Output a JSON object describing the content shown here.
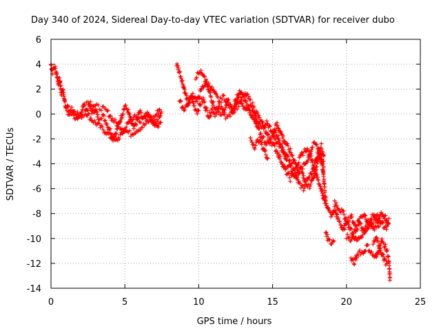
{
  "chart_data": {
    "type": "scatter",
    "title": "Day 340 of 2024, Sidereal Day-to-day VTEC variation (SDTVAR) for receiver dubo",
    "xlabel": "GPS time / hours",
    "ylabel": "SDTVAR / TECUs",
    "xlim": [
      0,
      25
    ],
    "ylim": [
      -14,
      6
    ],
    "xticks": [
      0,
      5,
      10,
      15,
      20,
      25
    ],
    "yticks": [
      -14,
      -12,
      -10,
      -8,
      -6,
      -4,
      -2,
      0,
      2,
      4,
      6
    ],
    "grid": true,
    "marker": "+",
    "series": [
      {
        "name": "SDTVAR",
        "color": "#ff0000",
        "tracks": [
          [
            [
              0.0,
              4.0
            ],
            [
              0.1,
              3.4
            ],
            [
              0.25,
              3.8
            ],
            [
              0.4,
              3.2
            ],
            [
              0.5,
              2.4
            ],
            [
              0.6,
              2.8
            ],
            [
              0.7,
              1.6
            ],
            [
              0.8,
              2.0
            ],
            [
              0.9,
              1.2
            ],
            [
              1.0,
              0.6
            ],
            [
              1.1,
              0.8
            ],
            [
              1.2,
              0.2
            ],
            [
              1.4,
              0.4
            ],
            [
              1.6,
              -0.2
            ],
            [
              1.8,
              -0.6
            ],
            [
              2.0,
              0.0
            ],
            [
              2.2,
              0.7
            ],
            [
              2.4,
              0.3
            ],
            [
              2.6,
              0.6
            ],
            [
              2.8,
              0.1
            ],
            [
              3.0,
              0.4
            ],
            [
              3.2,
              -0.3
            ],
            [
              3.5,
              -0.1
            ],
            [
              3.8,
              -0.8
            ],
            [
              4.0,
              -1.3
            ],
            [
              4.2,
              -1.8
            ],
            [
              4.4,
              -1.5
            ],
            [
              4.6,
              -0.8
            ],
            [
              4.8,
              -0.1
            ],
            [
              5.0,
              0.6
            ],
            [
              5.2,
              0.3
            ],
            [
              5.4,
              -0.5
            ],
            [
              5.6,
              -1.2
            ],
            [
              5.8,
              -0.6
            ],
            [
              6.0,
              0.2
            ],
            [
              6.3,
              -0.4
            ],
            [
              6.6,
              0.0
            ],
            [
              7.0,
              -0.8
            ],
            [
              7.3,
              -0.4
            ],
            [
              7.5,
              0.3
            ]
          ],
          [
            [
              1.0,
              0.3
            ],
            [
              1.3,
              0.0
            ],
            [
              1.6,
              0.3
            ],
            [
              2.0,
              -0.2
            ],
            [
              2.4,
              0.1
            ],
            [
              2.8,
              -0.5
            ],
            [
              3.2,
              -0.9
            ],
            [
              3.6,
              -1.3
            ],
            [
              4.0,
              -1.8
            ],
            [
              4.4,
              -2.2
            ],
            [
              4.8,
              -1.6
            ],
            [
              5.2,
              -0.8
            ],
            [
              5.6,
              -0.2
            ],
            [
              6.0,
              -0.6
            ],
            [
              6.4,
              0.1
            ],
            [
              6.8,
              -0.4
            ],
            [
              7.2,
              -1.0
            ],
            [
              7.5,
              -0.6
            ]
          ],
          [
            [
              2.2,
              0.9
            ],
            [
              2.6,
              1.0
            ],
            [
              3.0,
              0.6
            ],
            [
              3.4,
              0.5
            ],
            [
              3.8,
              0.2
            ],
            [
              4.2,
              -0.5
            ],
            [
              4.6,
              -0.9
            ],
            [
              5.0,
              -1.3
            ],
            [
              5.4,
              -1.6
            ],
            [
              5.8,
              -1.3
            ],
            [
              6.2,
              -1.0
            ],
            [
              6.6,
              -0.6
            ],
            [
              7.0,
              -0.3
            ],
            [
              7.4,
              0.5
            ]
          ],
          [
            [
              8.5,
              4.0
            ],
            [
              8.7,
              3.4
            ],
            [
              8.9,
              2.6
            ],
            [
              9.1,
              1.6
            ],
            [
              9.3,
              0.8
            ],
            [
              9.5,
              1.4
            ],
            [
              9.7,
              0.6
            ],
            [
              9.9,
              0.2
            ],
            [
              10.1,
              0.8
            ],
            [
              10.3,
              1.2
            ],
            [
              10.5,
              0.4
            ],
            [
              10.7,
              -0.2
            ],
            [
              10.9,
              0.4
            ],
            [
              11.1,
              0.0
            ],
            [
              11.4,
              0.6
            ],
            [
              11.7,
              0.2
            ],
            [
              12.0,
              1.0
            ],
            [
              12.3,
              0.4
            ],
            [
              12.6,
              1.4
            ],
            [
              12.9,
              0.8
            ],
            [
              13.2,
              0.2
            ],
            [
              13.5,
              0.6
            ],
            [
              13.8,
              0.0
            ],
            [
              14.0,
              -0.6
            ],
            [
              14.3,
              -1.0
            ],
            [
              14.6,
              -0.6
            ],
            [
              14.9,
              -1.4
            ],
            [
              15.2,
              -2.0
            ],
            [
              15.5,
              -2.6
            ],
            [
              15.8,
              -3.4
            ],
            [
              16.0,
              -4.0
            ],
            [
              16.3,
              -4.6
            ],
            [
              16.6,
              -5.0
            ],
            [
              16.9,
              -4.4
            ],
            [
              17.2,
              -5.4
            ],
            [
              17.5,
              -5.8
            ],
            [
              17.8,
              -5.0
            ],
            [
              18.0,
              -4.0
            ],
            [
              18.2,
              -3.2
            ],
            [
              18.4,
              -4.4
            ],
            [
              18.6,
              -7.0
            ],
            [
              18.8,
              -7.8
            ],
            [
              19.0,
              -8.2
            ],
            [
              19.2,
              -7.6
            ],
            [
              19.4,
              -8.4
            ],
            [
              19.6,
              -8.8
            ],
            [
              19.8,
              -9.4
            ],
            [
              20.0,
              -8.6
            ],
            [
              20.3,
              -8.2
            ],
            [
              20.6,
              -9.0
            ],
            [
              20.9,
              -8.4
            ],
            [
              21.2,
              -8.0
            ],
            [
              21.5,
              -8.8
            ],
            [
              21.8,
              -8.2
            ],
            [
              22.1,
              -8.6
            ],
            [
              22.4,
              -8.0
            ],
            [
              22.7,
              -8.4
            ],
            [
              22.9,
              -8.8
            ]
          ],
          [
            [
              8.7,
              1.0
            ],
            [
              9.0,
              0.4
            ],
            [
              9.3,
              0.9
            ],
            [
              9.6,
              1.6
            ],
            [
              9.9,
              1.0
            ],
            [
              10.2,
              2.0
            ],
            [
              10.5,
              2.6
            ],
            [
              10.8,
              2.2
            ],
            [
              11.1,
              1.6
            ],
            [
              11.4,
              1.0
            ],
            [
              11.7,
              1.4
            ],
            [
              12.0,
              0.8
            ],
            [
              12.3,
              0.2
            ],
            [
              12.6,
              0.6
            ],
            [
              12.9,
              1.2
            ],
            [
              13.2,
              1.6
            ],
            [
              13.5,
              1.0
            ],
            [
              13.8,
              0.4
            ],
            [
              14.1,
              -0.4
            ],
            [
              14.4,
              -1.0
            ],
            [
              14.7,
              -1.8
            ],
            [
              15.0,
              -2.4
            ],
            [
              15.3,
              -3.0
            ],
            [
              15.6,
              -3.8
            ],
            [
              15.9,
              -4.6
            ],
            [
              16.2,
              -5.2
            ],
            [
              16.5,
              -4.8
            ],
            [
              16.8,
              -5.6
            ],
            [
              17.1,
              -6.0
            ],
            [
              17.4,
              -5.2
            ],
            [
              17.7,
              -4.6
            ],
            [
              17.9,
              -3.8
            ],
            [
              18.1,
              -3.0
            ],
            [
              18.3,
              -2.6
            ],
            [
              18.5,
              -3.4
            ]
          ],
          [
            [
              9.8,
              3.0
            ],
            [
              10.1,
              3.4
            ],
            [
              10.4,
              2.8
            ],
            [
              10.7,
              1.8
            ],
            [
              11.0,
              0.8
            ],
            [
              11.3,
              0.2
            ],
            [
              11.6,
              0.0
            ],
            [
              11.9,
              -0.2
            ],
            [
              12.2,
              0.0
            ],
            [
              12.5,
              0.6
            ],
            [
              12.8,
              1.8
            ],
            [
              13.1,
              1.2
            ],
            [
              13.4,
              0.4
            ],
            [
              13.7,
              -0.4
            ],
            [
              14.0,
              -1.2
            ],
            [
              14.3,
              -1.8
            ],
            [
              14.6,
              -2.4
            ],
            [
              14.9,
              -2.0
            ],
            [
              15.2,
              -1.4
            ],
            [
              15.5,
              -2.2
            ],
            [
              15.8,
              -3.0
            ],
            [
              16.1,
              -3.6
            ],
            [
              16.4,
              -4.4
            ],
            [
              16.7,
              -4.0
            ],
            [
              17.0,
              -3.2
            ],
            [
              17.3,
              -2.8
            ],
            [
              17.6,
              -3.4
            ],
            [
              17.9,
              -4.6
            ],
            [
              18.1,
              -5.4
            ],
            [
              18.3,
              -6.0
            ],
            [
              18.5,
              -7.0
            ],
            [
              18.7,
              -7.4
            ]
          ],
          [
            [
              13.5,
              -2.0
            ],
            [
              13.8,
              -2.6
            ],
            [
              14.1,
              -2.0
            ],
            [
              14.4,
              -2.8
            ],
            [
              14.7,
              -3.6
            ]
          ],
          [
            [
              15.0,
              -1.4
            ],
            [
              15.3,
              -0.8
            ],
            [
              15.6,
              -1.6
            ],
            [
              15.9,
              -2.4
            ],
            [
              16.2,
              -3.0
            ],
            [
              16.5,
              -3.8
            ],
            [
              16.8,
              -4.6
            ],
            [
              17.1,
              -4.2
            ],
            [
              17.4,
              -3.6
            ],
            [
              17.7,
              -2.6
            ],
            [
              17.9,
              -2.4
            ],
            [
              18.1,
              -2.8
            ],
            [
              18.3,
              -3.4
            ],
            [
              18.5,
              -4.2
            ]
          ],
          [
            [
              18.6,
              -9.6
            ],
            [
              18.8,
              -10.2
            ],
            [
              19.0,
              -10.4
            ],
            [
              19.2,
              -10.0
            ]
          ],
          [
            [
              19.2,
              -7.0
            ],
            [
              19.5,
              -7.6
            ],
            [
              19.8,
              -8.0
            ],
            [
              20.1,
              -8.8
            ],
            [
              20.4,
              -9.6
            ],
            [
              20.7,
              -10.2
            ],
            [
              21.0,
              -9.8
            ],
            [
              21.3,
              -9.0
            ],
            [
              21.6,
              -8.6
            ],
            [
              21.9,
              -9.2
            ],
            [
              22.2,
              -8.8
            ],
            [
              22.5,
              -8.4
            ],
            [
              22.8,
              -8.6
            ]
          ],
          [
            [
              20.0,
              -9.8
            ],
            [
              20.3,
              -10.2
            ],
            [
              20.6,
              -9.4
            ],
            [
              20.9,
              -8.8
            ],
            [
              21.2,
              -9.6
            ],
            [
              21.5,
              -9.2
            ],
            [
              21.8,
              -8.6
            ],
            [
              22.1,
              -8.2
            ],
            [
              22.4,
              -8.8
            ],
            [
              22.7,
              -9.2
            ],
            [
              22.9,
              -8.4
            ]
          ],
          [
            [
              20.3,
              -11.6
            ],
            [
              20.5,
              -12.0
            ],
            [
              20.7,
              -11.4
            ],
            [
              20.9,
              -11.0
            ],
            [
              21.1,
              -11.2
            ],
            [
              21.4,
              -10.6
            ],
            [
              21.7,
              -11.2
            ],
            [
              22.0,
              -11.6
            ],
            [
              22.2,
              -10.8
            ],
            [
              22.4,
              -10.2
            ],
            [
              22.6,
              -10.6
            ],
            [
              22.8,
              -11.2
            ],
            [
              22.9,
              -12.4
            ],
            [
              22.95,
              -13.4
            ]
          ],
          [
            [
              21.8,
              -10.4
            ],
            [
              22.0,
              -10.0
            ],
            [
              22.2,
              -10.6
            ],
            [
              22.4,
              -11.2
            ],
            [
              22.6,
              -11.8
            ],
            [
              22.8,
              -12.2
            ]
          ]
        ]
      }
    ]
  }
}
